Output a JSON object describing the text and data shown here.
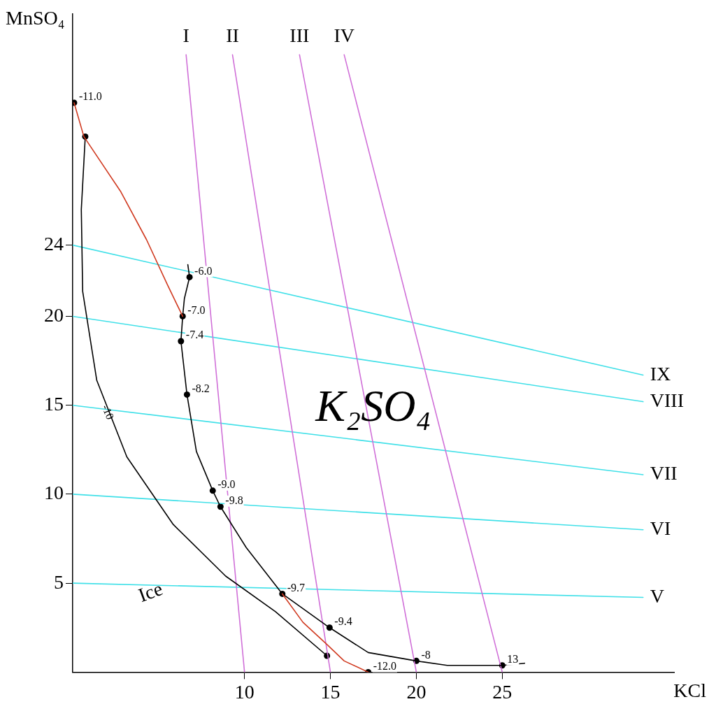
{
  "chart_data": {
    "type": "line",
    "xlabel": "KCl",
    "ylabel": "MnSO₄",
    "xlim": [
      0,
      35
    ],
    "ylim": [
      0,
      37
    ],
    "xticks": [
      10,
      15,
      20,
      25
    ],
    "yticks": [
      5,
      10,
      15,
      20,
      24
    ],
    "grid": false,
    "legend": false,
    "marker": "none",
    "line_style": "solid",
    "series": [
      {
        "color": "#d03a20",
        "x": [
          0.08,
          0.65,
          2.8,
          4.3,
          5.5,
          6.4
        ],
        "values": [
          32.0,
          30.1,
          27.0,
          24.3,
          21.8,
          20.0
        ]
      },
      {
        "color": "#d03a20",
        "x": [
          12.2,
          13.4,
          14.8,
          15.8,
          17.2
        ],
        "values": [
          4.4,
          2.8,
          1.55,
          0.63,
          0
        ]
      },
      {
        "color": "#000000",
        "x": [
          6.7,
          6.8,
          6.5,
          6.4,
          6.3,
          6.65,
          7.2,
          8.15,
          8.6,
          10.1,
          12.2,
          14.95,
          17.2,
          20,
          21.8,
          25,
          26.3
        ],
        "values": [
          22.9,
          22.2,
          21.0,
          20,
          18.6,
          15.6,
          12.4,
          10.2,
          9.3,
          7.0,
          4.4,
          2.5,
          1.1,
          0.63,
          0.38,
          0.38,
          0.5
        ]
      },
      {
        "name": "-10",
        "color": "#000000",
        "x": [
          0.73,
          0.5,
          0.58,
          1.4,
          3.15,
          5.85,
          8.9,
          11.8,
          14.8
        ],
        "values": [
          30.1,
          26.0,
          21.4,
          16.4,
          12.1,
          8.3,
          5.4,
          3.4,
          0.92
        ]
      },
      {
        "name": "I",
        "color": "#d070d8",
        "x": [
          6.6,
          10
        ],
        "values": [
          34.7,
          0
        ]
      },
      {
        "name": "II",
        "color": "#d070d8",
        "x": [
          9.3,
          15
        ],
        "values": [
          34.7,
          0
        ]
      },
      {
        "name": "III",
        "color": "#d070d8",
        "x": [
          13.2,
          20
        ],
        "values": [
          34.7,
          0
        ]
      },
      {
        "name": "IV",
        "color": "#d070d8",
        "x": [
          15.8,
          25
        ],
        "values": [
          34.7,
          0
        ]
      },
      {
        "name": "V",
        "color": "#40e0e8",
        "x": [
          0,
          33.2
        ],
        "values": [
          5,
          4.2
        ]
      },
      {
        "name": "VI",
        "color": "#40e0e8",
        "x": [
          0,
          33.2
        ],
        "values": [
          10,
          8.0
        ]
      },
      {
        "name": "VII",
        "color": "#40e0e8",
        "x": [
          0,
          33.2
        ],
        "values": [
          15,
          11.1
        ]
      },
      {
        "name": "VIII",
        "color": "#40e0e8",
        "x": [
          0,
          33.2
        ],
        "values": [
          20,
          15.2
        ]
      },
      {
        "name": "IX",
        "color": "#40e0e8",
        "x": [
          0,
          33.2
        ],
        "values": [
          24,
          16.7
        ]
      },
      {
        "type": "scatter",
        "marker": "circle",
        "color": "#000000",
        "x": [
          0.08,
          0.73,
          6.8,
          6.4,
          6.3,
          6.65,
          8.15,
          8.6,
          12.2,
          14.95,
          20,
          25,
          14.8,
          17.2
        ],
        "values": [
          32.0,
          30.1,
          22.2,
          20,
          18.6,
          15.6,
          10.2,
          9.3,
          4.4,
          2.5,
          0.63,
          0.38,
          0.92,
          0
        ]
      }
    ],
    "annotations": [
      {
        "text": "-11.0",
        "x": 0.08,
        "y": 32.0
      },
      {
        "text": "-6.0",
        "x": 6.8,
        "y": 22.2
      },
      {
        "text": "-7.0",
        "x": 6.4,
        "y": 20
      },
      {
        "text": "-7.4",
        "x": 6.3,
        "y": 18.6
      },
      {
        "text": "-8.2",
        "x": 6.65,
        "y": 15.6
      },
      {
        "text": "-9.0",
        "x": 8.15,
        "y": 10.2
      },
      {
        "text": "-9.8",
        "x": 8.6,
        "y": 9.3
      },
      {
        "text": "-9.7",
        "x": 12.2,
        "y": 4.4
      },
      {
        "text": "-9.4",
        "x": 14.95,
        "y": 2.5
      },
      {
        "text": "-8",
        "x": 20,
        "y": 0.63
      },
      {
        "text": "13",
        "x": 25,
        "y": 0.38
      },
      {
        "text": "-12.0",
        "x": 17.2,
        "y": 0
      },
      "Ice",
      "K₂SO₄"
    ]
  }
}
